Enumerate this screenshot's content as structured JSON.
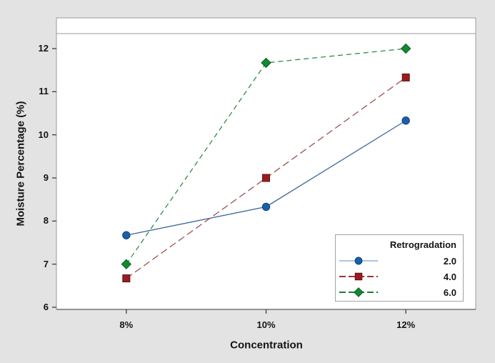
{
  "chart_data": {
    "type": "line",
    "title": "",
    "xlabel": "Concentration",
    "ylabel": "Moisture Percentage (%)",
    "categories": [
      "8%",
      "10%",
      "12%"
    ],
    "y_ticks": [
      6,
      7,
      8,
      9,
      10,
      11,
      12
    ],
    "ylim": [
      5.95,
      12.71
    ],
    "grid": false,
    "legend": {
      "title": "Retrogradation",
      "position": "inside-bottom-right"
    },
    "series": [
      {
        "name": "2.0",
        "values": [
          7.67,
          8.33,
          10.33
        ],
        "marker": "circle",
        "marker_color": "#1b5fa8",
        "marker_edge": "#10457e",
        "line_color": "#39689b",
        "legend_line_color": "#aec6e0",
        "line_style": "solid",
        "dash": ""
      },
      {
        "name": "4.0",
        "values": [
          6.67,
          9.0,
          11.33
        ],
        "marker": "square",
        "marker_color": "#9b1b20",
        "marker_edge": "#5f1012",
        "line_color": "#a05252",
        "legend_line_color": "#9c3538",
        "line_style": "dashed",
        "dash": "10,5"
      },
      {
        "name": "6.0",
        "values": [
          7.0,
          11.67,
          12.0
        ],
        "marker": "diamond",
        "marker_color": "#128a2e",
        "marker_edge": "#0a5c1e",
        "line_color": "#2f8c48",
        "legend_line_color": "#1e7d33",
        "line_style": "dashed",
        "dash": "7,5"
      }
    ],
    "colors": {
      "background": "#e3e3e3",
      "plot_background": "#ffffff",
      "frame_border": "#9b9b9b",
      "bottom_axis": "#5a5a5a",
      "tick": "#333333",
      "text": "#141414"
    }
  }
}
